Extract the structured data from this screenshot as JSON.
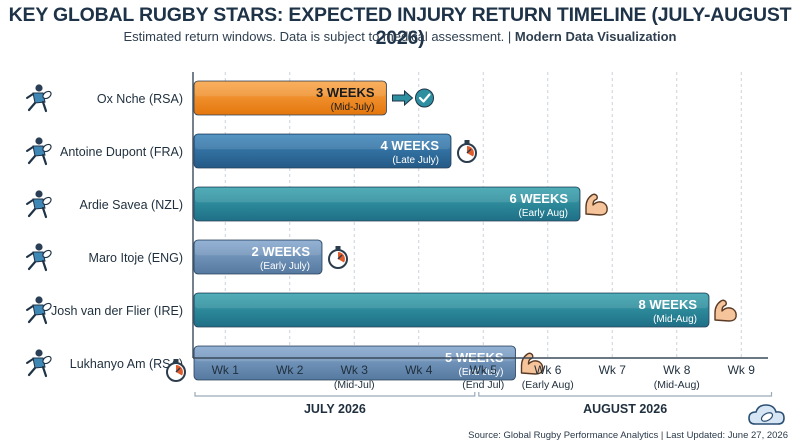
{
  "header": {
    "title": "KEY GLOBAL RUGBY STARS: EXPECTED INJURY RETURN TIMELINE (JULY-AUGUST 2026)",
    "subtitle_main": "Estimated return windows. Data is subject to medical assessment. | ",
    "subtitle_bold": "Modern Data Visualization"
  },
  "footer": {
    "source": "Source: Global Rugby Performance Analytics | Last Updated: June 27, 2026"
  },
  "colors": {
    "orange": "#f28a1e",
    "blue_dark": "#2f6f9e",
    "blue_light": "#6d93bd",
    "teal": "#2a8c98",
    "check_teal": "#2e8fa0",
    "muscle": "#f6c49a"
  },
  "chart_data": {
    "type": "bar",
    "orientation": "horizontal",
    "categories": [
      "Ox Nche (RSA)",
      "Antoine Dupont (FRA)",
      "Ardie Savea (NZL)",
      "Maro Itoje (ENG)",
      "Josh van der Flier (IRE)",
      "Lukhanyo Am (RSA)"
    ],
    "values": [
      3,
      4,
      6,
      2,
      8,
      5
    ],
    "value_labels": [
      "3 WEEKS",
      "4 WEEKS",
      "6 WEEKS",
      "2 WEEKS",
      "8 WEEKS",
      "5 WEEKS"
    ],
    "sub_labels": [
      "(Mid-July)",
      "(Late July)",
      "(Early Aug)",
      "(Early July)",
      "(Mid-Aug)",
      "(End July)"
    ],
    "bar_styles": [
      "orange",
      "blue_dark",
      "teal",
      "blue_light",
      "teal",
      "blue_light"
    ],
    "end_icons": [
      "arrow-check-icon",
      "stopwatch-icon",
      "muscle-icon",
      "stopwatch-icon",
      "muscle-icon",
      "muscle-icon"
    ],
    "xlim": [
      0,
      9
    ],
    "x_ticks": [
      {
        "label": "Wk 1",
        "sub": ""
      },
      {
        "label": "Wk 2",
        "sub": ""
      },
      {
        "label": "Wk 3",
        "sub": "(Mid-Jul)"
      },
      {
        "label": "Wk 4",
        "sub": ""
      },
      {
        "label": "Wk 5",
        "sub": "(End Jul)"
      },
      {
        "label": "Wk 6",
        "sub": "(Early Aug)"
      },
      {
        "label": "Wk 7",
        "sub": ""
      },
      {
        "label": "Wk 8",
        "sub": "(Mid-Aug)"
      },
      {
        "label": "Wk 9",
        "sub": ""
      }
    ],
    "month_groups": [
      {
        "label": "JULY 2026",
        "from_week": 0,
        "to_week": 4.4
      },
      {
        "label": "AUGUST 2026",
        "from_week": 4.4,
        "to_week": 9
      }
    ],
    "grid": true
  }
}
